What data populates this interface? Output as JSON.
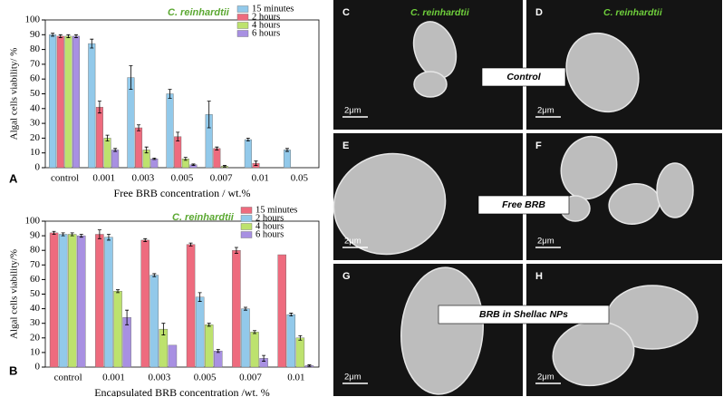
{
  "chart_data": [
    {
      "type": "bar",
      "panel_label": "A",
      "title": "C. reinhardtii",
      "ylabel": "Algal cells viability/ %",
      "xlabel": "Free BRB concentration / wt.%",
      "categories": [
        "control",
        "0.001",
        "0.003",
        "0.005",
        "0.007",
        "0.01",
        "0.05"
      ],
      "series": [
        {
          "name": "15 minutes",
          "color": "#92c9ea",
          "values": [
            90,
            84,
            61,
            50,
            36,
            19,
            12
          ],
          "errors": [
            1,
            3,
            8,
            3,
            9,
            1,
            1
          ]
        },
        {
          "name": "2 hours",
          "color": "#ee6b7e",
          "values": [
            89,
            41,
            27,
            21,
            13,
            3,
            0
          ],
          "errors": [
            1,
            4,
            2,
            3,
            1,
            1.5,
            0
          ]
        },
        {
          "name": "4 hours",
          "color": "#bde26e",
          "values": [
            89,
            20,
            12,
            6,
            1,
            0,
            0
          ],
          "errors": [
            1,
            2,
            2,
            1,
            0.5,
            0,
            0
          ]
        },
        {
          "name": "6 hours",
          "color": "#a890e2",
          "values": [
            89,
            12,
            6,
            2,
            0,
            0,
            0
          ],
          "errors": [
            1,
            1,
            0.5,
            0.5,
            0,
            0,
            0
          ]
        }
      ],
      "ylim": [
        0,
        100
      ],
      "yticks": [
        0,
        10,
        20,
        30,
        40,
        50,
        60,
        70,
        80,
        90,
        100
      ],
      "legend": "upper right"
    },
    {
      "type": "bar",
      "panel_label": "B",
      "title": "C. reinhardtii",
      "ylabel": "Algal cells viability/%",
      "xlabel": "Encapsulated BRB concentration /wt. %",
      "categories": [
        "control",
        "0.001",
        "0.003",
        "0.005",
        "0.007",
        "0.01"
      ],
      "series": [
        {
          "name": "15 minutes",
          "color": "#ee6b7e",
          "values": [
            92,
            91,
            87,
            84,
            80,
            77
          ],
          "errors": [
            1,
            3,
            1,
            1,
            2,
            0
          ]
        },
        {
          "name": "2 hours",
          "color": "#92c9ea",
          "values": [
            91,
            89,
            63,
            48,
            40,
            36
          ],
          "errors": [
            1,
            2,
            1,
            3,
            1,
            1
          ]
        },
        {
          "name": "4 hours",
          "color": "#bde26e",
          "values": [
            91,
            52,
            26,
            29,
            24,
            20
          ],
          "errors": [
            1,
            1,
            4,
            1,
            1,
            1.5
          ]
        },
        {
          "name": "6 hours",
          "color": "#a890e2",
          "values": [
            90,
            34,
            15,
            11,
            6,
            1
          ],
          "errors": [
            1,
            5,
            0,
            1,
            2,
            0.5
          ]
        }
      ],
      "ylim": [
        0,
        100
      ],
      "yticks": [
        0,
        10,
        20,
        30,
        40,
        50,
        60,
        70,
        80,
        90,
        100
      ],
      "legend": "upper right"
    }
  ],
  "images": {
    "panels": [
      {
        "letter": "C",
        "scale": "2μm",
        "species": "C. reinhardtii"
      },
      {
        "letter": "D",
        "scale": "2μm",
        "species": "C. reinhardtii"
      },
      {
        "letter": "E",
        "scale": "2μm"
      },
      {
        "letter": "F",
        "scale": "2μm"
      },
      {
        "letter": "G",
        "scale": "2μm"
      },
      {
        "letter": "H",
        "scale": "2μm"
      }
    ],
    "captions": [
      "Control",
      "Free BRB",
      "BRB in Shellac NPs"
    ]
  }
}
